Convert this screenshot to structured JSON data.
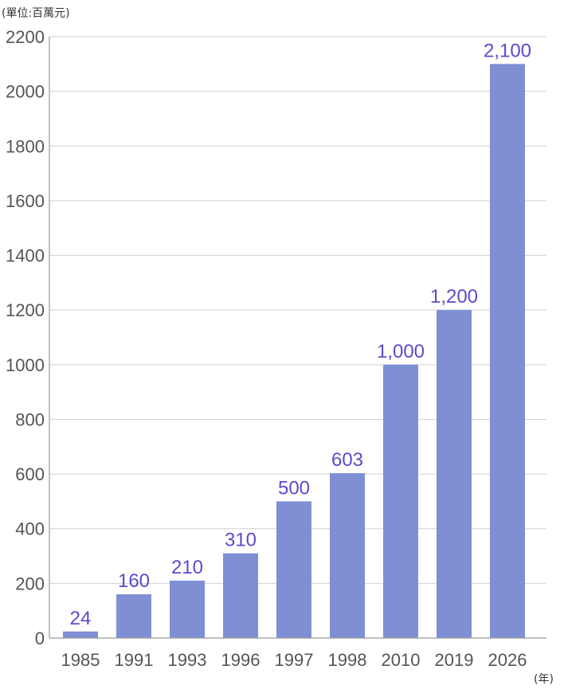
{
  "chart_data": {
    "type": "bar",
    "title": "",
    "unit_label": "(單位:百萬元)",
    "xunit_label": "(年)",
    "categories": [
      "1985",
      "1991",
      "1993",
      "1996",
      "1997",
      "1998",
      "2010",
      "2019",
      "2026"
    ],
    "values": [
      24,
      160,
      210,
      310,
      500,
      603,
      1000,
      1200,
      2100
    ],
    "data_labels": [
      "24",
      "160",
      "210",
      "310",
      "500",
      "603",
      "1,000",
      "1,200",
      "2,100"
    ],
    "ylim": [
      0,
      2200
    ],
    "yticks": [
      0,
      200,
      400,
      600,
      800,
      1000,
      1200,
      1400,
      1600,
      1800,
      2000,
      2200
    ],
    "grid": true,
    "colors": {
      "bar": "#7f8fd4",
      "data_label": "#5a4ccc",
      "tick": "#555555",
      "grid": "#d2d2d2"
    }
  }
}
